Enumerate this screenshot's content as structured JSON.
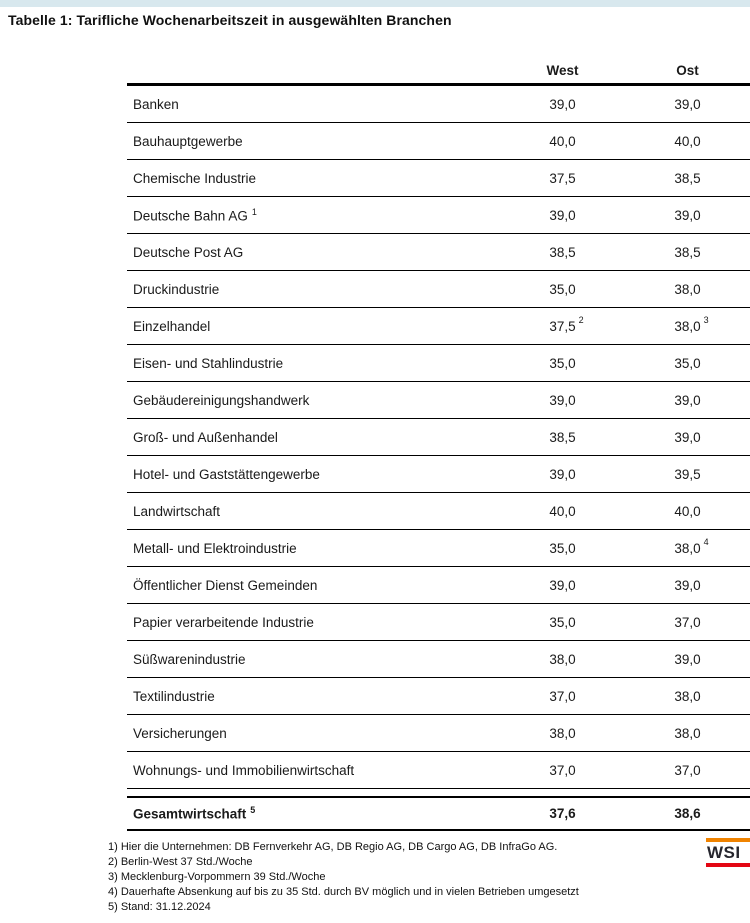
{
  "page": {
    "title": "Tabelle 1: Tarifliche Wochenarbeitszeit in ausgewählten Branchen"
  },
  "colors": {
    "top_strip": "#d8e8ee",
    "rule": "#000000",
    "logo_orange": "#f08300",
    "logo_red": "#e30613"
  },
  "table": {
    "columns": {
      "west": "West",
      "ost": "Ost"
    },
    "rows": [
      {
        "label": "Banken",
        "label_sup": "",
        "west": "39,0",
        "west_sup": "",
        "ost": "39,0",
        "ost_sup": ""
      },
      {
        "label": "Bauhauptgewerbe",
        "label_sup": "",
        "west": "40,0",
        "west_sup": "",
        "ost": "40,0",
        "ost_sup": ""
      },
      {
        "label": "Chemische Industrie",
        "label_sup": "",
        "west": "37,5",
        "west_sup": "",
        "ost": "38,5",
        "ost_sup": ""
      },
      {
        "label": "Deutsche Bahn AG",
        "label_sup": "1",
        "west": "39,0",
        "west_sup": "",
        "ost": "39,0",
        "ost_sup": ""
      },
      {
        "label": "Deutsche Post AG",
        "label_sup": "",
        "west": "38,5",
        "west_sup": "",
        "ost": "38,5",
        "ost_sup": ""
      },
      {
        "label": "Druckindustrie",
        "label_sup": "",
        "west": "35,0",
        "west_sup": "",
        "ost": "38,0",
        "ost_sup": ""
      },
      {
        "label": "Einzelhandel",
        "label_sup": "",
        "west": "37,5",
        "west_sup": "2",
        "ost": "38,0",
        "ost_sup": "3"
      },
      {
        "label": "Eisen- und Stahlindustrie",
        "label_sup": "",
        "west": "35,0",
        "west_sup": "",
        "ost": "35,0",
        "ost_sup": ""
      },
      {
        "label": "Gebäudereinigungshandwerk",
        "label_sup": "",
        "west": "39,0",
        "west_sup": "",
        "ost": "39,0",
        "ost_sup": ""
      },
      {
        "label": "Groß- und Außenhandel",
        "label_sup": "",
        "west": "38,5",
        "west_sup": "",
        "ost": "39,0",
        "ost_sup": ""
      },
      {
        "label": "Hotel- und Gaststättengewerbe",
        "label_sup": "",
        "west": "39,0",
        "west_sup": "",
        "ost": "39,5",
        "ost_sup": ""
      },
      {
        "label": "Landwirtschaft",
        "label_sup": "",
        "west": "40,0",
        "west_sup": "",
        "ost": "40,0",
        "ost_sup": ""
      },
      {
        "label": "Metall- und Elektroindustrie",
        "label_sup": "",
        "west": "35,0",
        "west_sup": "",
        "ost": "38,0",
        "ost_sup": "4"
      },
      {
        "label": "Öffentlicher Dienst Gemeinden",
        "label_sup": "",
        "west": "39,0",
        "west_sup": "",
        "ost": "39,0",
        "ost_sup": ""
      },
      {
        "label": "Papier verarbeitende Industrie",
        "label_sup": "",
        "west": "35,0",
        "west_sup": "",
        "ost": "37,0",
        "ost_sup": ""
      },
      {
        "label": "Süßwarenindustrie",
        "label_sup": "",
        "west": "38,0",
        "west_sup": "",
        "ost": "39,0",
        "ost_sup": ""
      },
      {
        "label": "Textilindustrie",
        "label_sup": "",
        "west": "37,0",
        "west_sup": "",
        "ost": "38,0",
        "ost_sup": ""
      },
      {
        "label": "Versicherungen",
        "label_sup": "",
        "west": "38,0",
        "west_sup": "",
        "ost": "38,0",
        "ost_sup": ""
      },
      {
        "label": "Wohnungs- und Immobilienwirtschaft",
        "label_sup": "",
        "west": "37,0",
        "west_sup": "",
        "ost": "37,0",
        "ost_sup": ""
      }
    ],
    "total_row": {
      "label": "Gesamtwirtschaft",
      "label_sup": "5",
      "west": "37,6",
      "west_sup": "",
      "ost": "38,6",
      "ost_sup": ""
    }
  },
  "footnotes": [
    "1) Hier die Unternehmen: DB Fernverkehr AG, DB Regio AG, DB Cargo AG, DB InfraGo AG.",
    "2) Berlin-West 37 Std./Woche",
    "3) Mecklenburg-Vorpommern 39 Std./Woche",
    "4) Dauerhafte Absenkung auf bis zu 35 Std. durch BV möglich und in vielen Betrieben umgesetzt",
    "5) Stand: 31.12.2024"
  ],
  "logo": {
    "text": "WSI"
  }
}
